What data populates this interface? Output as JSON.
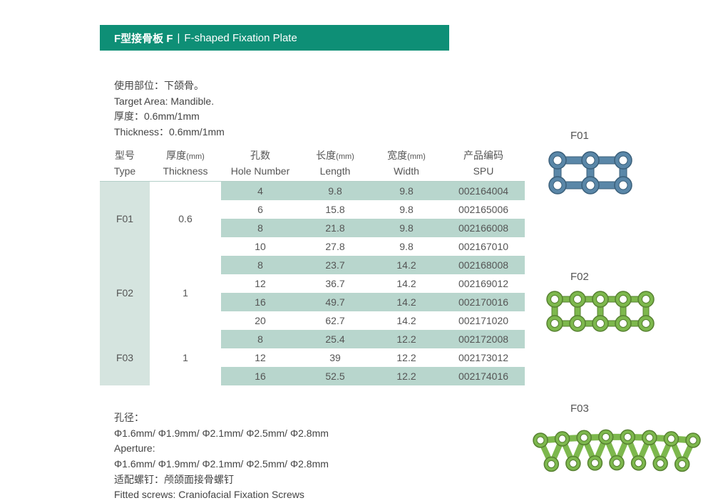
{
  "header": {
    "cn": "F型接骨板 F",
    "en": "F-shaped Fixation Plate"
  },
  "info_top": {
    "line1": "使用部位：下颌骨。",
    "line2": "Target Area: Mandible.",
    "line3": "厚度：0.6mm/1mm",
    "line4": "Thickness：0.6mm/1mm"
  },
  "columns": {
    "type_cn": "型号",
    "type_en": "Type",
    "thick_cn": "厚度",
    "thick_unit": "(mm)",
    "thick_en": "Thickness",
    "hole_cn": "孔数",
    "hole_en": "Hole Number",
    "length_cn": "长度",
    "length_unit": "(mm)",
    "length_en": "Length",
    "width_cn": "宽度",
    "width_unit": "(mm)",
    "width_en": "Width",
    "spu_cn": "产品编码",
    "spu_en": "SPU"
  },
  "groups": [
    {
      "type": "F01",
      "thickness": "0.6",
      "rows": [
        {
          "hole": "4",
          "length": "9.8",
          "width": "9.8",
          "spu": "002164004"
        },
        {
          "hole": "6",
          "length": "15.8",
          "width": "9.8",
          "spu": "002165006"
        },
        {
          "hole": "8",
          "length": "21.8",
          "width": "9.8",
          "spu": "002166008"
        },
        {
          "hole": "10",
          "length": "27.8",
          "width": "9.8",
          "spu": "002167010"
        }
      ]
    },
    {
      "type": "F02",
      "thickness": "1",
      "rows": [
        {
          "hole": "8",
          "length": "23.7",
          "width": "14.2",
          "spu": "002168008"
        },
        {
          "hole": "12",
          "length": "36.7",
          "width": "14.2",
          "spu": "002169012"
        },
        {
          "hole": "16",
          "length": "49.7",
          "width": "14.2",
          "spu": "002170016"
        },
        {
          "hole": "20",
          "length": "62.7",
          "width": "14.2",
          "spu": "002171020"
        }
      ]
    },
    {
      "type": "F03",
      "thickness": "1",
      "rows": [
        {
          "hole": "8",
          "length": "25.4",
          "width": "12.2",
          "spu": "002172008"
        },
        {
          "hole": "12",
          "length": "39",
          "width": "12.2",
          "spu": "002173012"
        },
        {
          "hole": "16",
          "length": "52.5",
          "width": "12.2",
          "spu": "002174016"
        }
      ]
    }
  ],
  "info_bottom": {
    "line1": "孔径：",
    "line2": "Φ1.6mm/ Φ1.9mm/ Φ2.1mm/ Φ2.5mm/ Φ2.8mm",
    "line3": "Aperture:",
    "line4": "Φ1.6mm/ Φ1.9mm/ Φ2.1mm/ Φ2.5mm/ Φ2.8mm",
    "line5": "适配螺钉：颅颌面接骨螺钉",
    "line6": "Fitted screws: Craniofacial Fixation Screws"
  },
  "plate_labels": {
    "f01": "F01",
    "f02": "F02",
    "f03": "F03"
  },
  "colors": {
    "header_bg": "#0e8f76",
    "cell_green": "#b8d6cd",
    "cell_light": "#d5e4df",
    "plate_blue_fill": "#5a87a8",
    "plate_blue_stroke": "#3a5f7a",
    "plate_green_fill": "#7db84d",
    "plate_green_stroke": "#568030"
  }
}
